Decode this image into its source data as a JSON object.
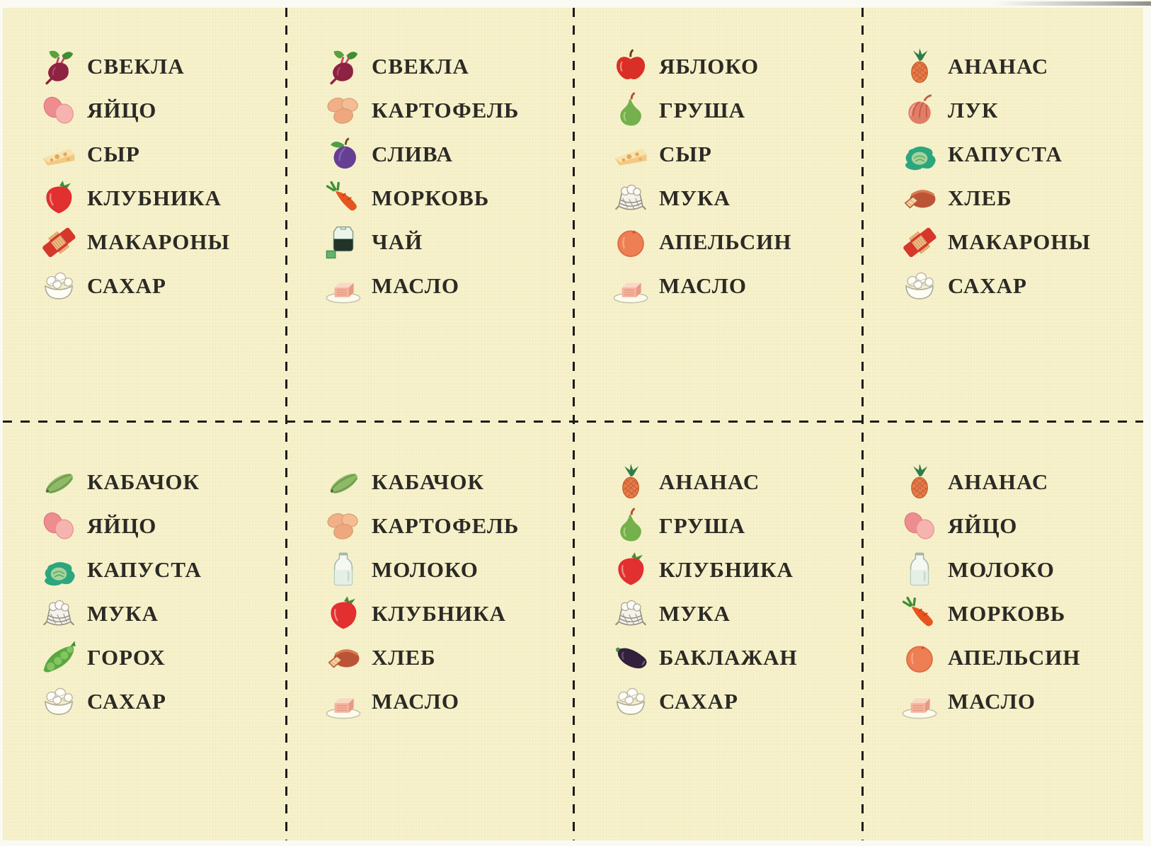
{
  "sheet": {
    "rows": 2,
    "cols": 4,
    "colors": {
      "paper": "#f7f2cb",
      "ink": "#2c2a25",
      "cut_line": "#1d1c19"
    }
  },
  "cards": [
    {
      "row": 1,
      "col": 1,
      "items": [
        {
          "icon": "beet-icon",
          "label": "СВЕКЛА"
        },
        {
          "icon": "eggs-icon",
          "label": "ЯЙЦО"
        },
        {
          "icon": "cheese-icon",
          "label": "СЫР"
        },
        {
          "icon": "strawberry-icon",
          "label": "КЛУБНИКА"
        },
        {
          "icon": "pasta-icon",
          "label": "МАКАРОНЫ"
        },
        {
          "icon": "sugar-icon",
          "label": "САХАР"
        }
      ]
    },
    {
      "row": 1,
      "col": 2,
      "items": [
        {
          "icon": "beet-icon",
          "label": "СВЕКЛА"
        },
        {
          "icon": "potato-icon",
          "label": "КАРТОФЕЛЬ"
        },
        {
          "icon": "plum-icon",
          "label": "СЛИВА"
        },
        {
          "icon": "carrot-icon",
          "label": "МОРКОВЬ"
        },
        {
          "icon": "tea-icon",
          "label": "ЧАЙ"
        },
        {
          "icon": "butter-icon",
          "label": "МАСЛО"
        }
      ]
    },
    {
      "row": 1,
      "col": 3,
      "items": [
        {
          "icon": "apple-icon",
          "label": "ЯБЛОКО"
        },
        {
          "icon": "pear-icon",
          "label": "ГРУША"
        },
        {
          "icon": "cheese-icon",
          "label": "СЫР"
        },
        {
          "icon": "flour-icon",
          "label": "МУКА"
        },
        {
          "icon": "orange-icon",
          "label": "АПЕЛЬСИН"
        },
        {
          "icon": "butter-icon",
          "label": "МАСЛО"
        }
      ]
    },
    {
      "row": 1,
      "col": 4,
      "items": [
        {
          "icon": "pineapple-icon",
          "label": "АНАНАС"
        },
        {
          "icon": "onion-icon",
          "label": "ЛУК"
        },
        {
          "icon": "cabbage-icon",
          "label": "КАПУСТА"
        },
        {
          "icon": "bread-icon",
          "label": "ХЛЕБ"
        },
        {
          "icon": "pasta-icon",
          "label": "МАКАРОНЫ"
        },
        {
          "icon": "sugar-icon",
          "label": "САХАР"
        }
      ]
    },
    {
      "row": 2,
      "col": 1,
      "items": [
        {
          "icon": "zucchini-icon",
          "label": "КАБАЧОК"
        },
        {
          "icon": "eggs-icon",
          "label": "ЯЙЦО"
        },
        {
          "icon": "cabbage-icon",
          "label": "КАПУСТА"
        },
        {
          "icon": "flour-icon",
          "label": "МУКА"
        },
        {
          "icon": "peas-icon",
          "label": "ГОРОХ"
        },
        {
          "icon": "sugar-icon",
          "label": "САХАР"
        }
      ]
    },
    {
      "row": 2,
      "col": 2,
      "items": [
        {
          "icon": "zucchini-icon",
          "label": "КАБАЧОК"
        },
        {
          "icon": "potato-icon",
          "label": "КАРТОФЕЛЬ"
        },
        {
          "icon": "milk-icon",
          "label": "МОЛОКО"
        },
        {
          "icon": "strawberry-icon",
          "label": "КЛУБНИКА"
        },
        {
          "icon": "bread-icon",
          "label": "ХЛЕБ"
        },
        {
          "icon": "butter-icon",
          "label": "МАСЛО"
        }
      ]
    },
    {
      "row": 2,
      "col": 3,
      "items": [
        {
          "icon": "pineapple-icon",
          "label": "АНАНАС"
        },
        {
          "icon": "pear-icon",
          "label": "ГРУША"
        },
        {
          "icon": "strawberry-icon",
          "label": "КЛУБНИКА"
        },
        {
          "icon": "flour-icon",
          "label": "МУКА"
        },
        {
          "icon": "eggplant-icon",
          "label": "БАКЛАЖАН"
        },
        {
          "icon": "sugar-icon",
          "label": "САХАР"
        }
      ]
    },
    {
      "row": 2,
      "col": 4,
      "items": [
        {
          "icon": "pineapple-icon",
          "label": "АНАНАС"
        },
        {
          "icon": "eggs-icon",
          "label": "ЯЙЦО"
        },
        {
          "icon": "milk-icon",
          "label": "МОЛОКО"
        },
        {
          "icon": "carrot-icon",
          "label": "МОРКОВЬ"
        },
        {
          "icon": "orange-icon",
          "label": "АПЕЛЬСИН"
        },
        {
          "icon": "butter-icon",
          "label": "МАСЛО"
        }
      ]
    }
  ]
}
